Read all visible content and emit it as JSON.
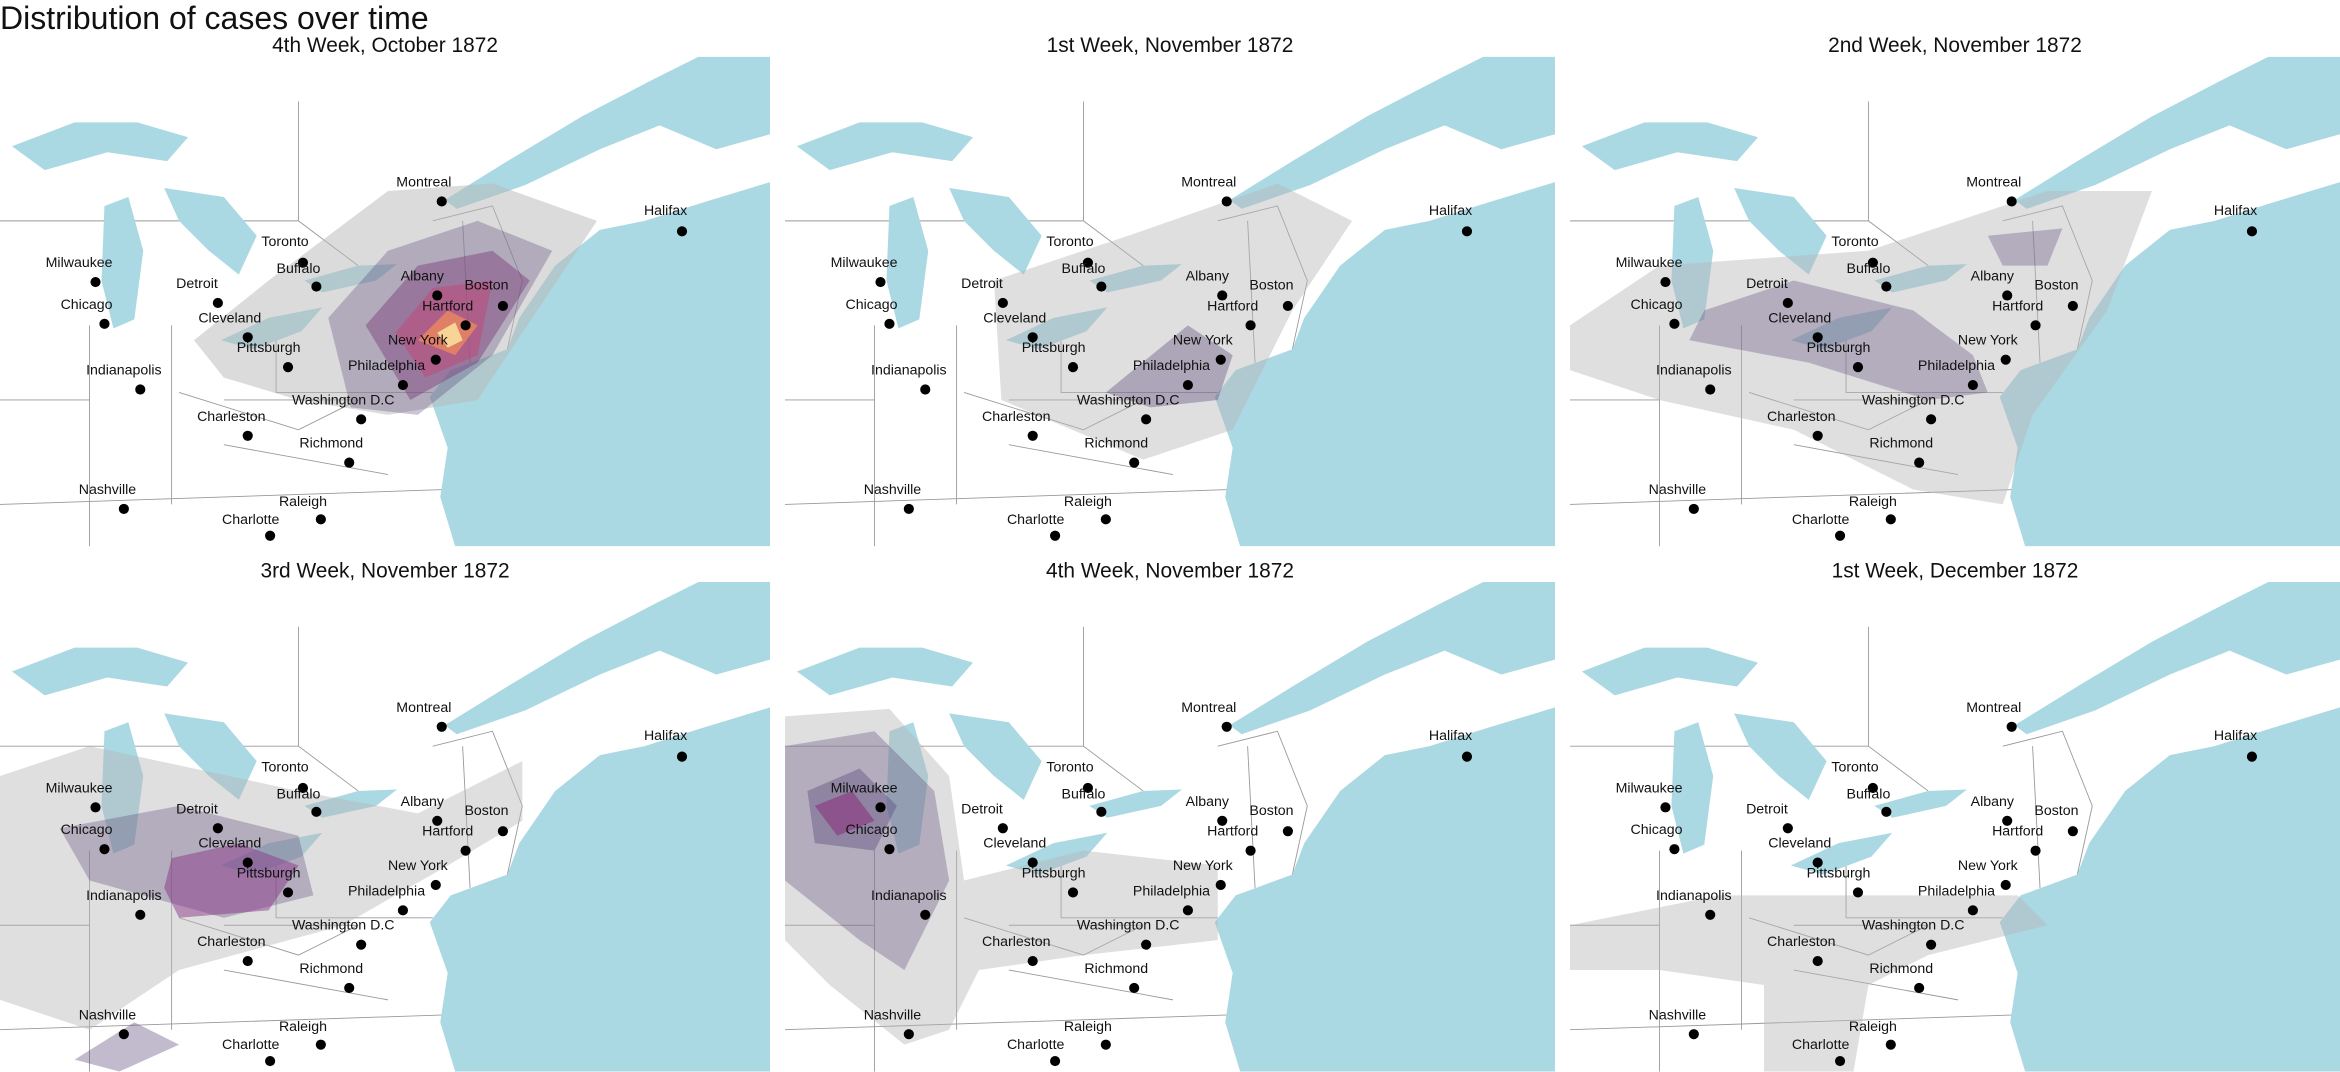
{
  "title": "Distribution of cases over time",
  "panels": [
    {
      "title": "4th Week, October 1872"
    },
    {
      "title": "1st Week, November 1872"
    },
    {
      "title": "2nd Week, November 1872"
    },
    {
      "title": "3rd Week, November 1872"
    },
    {
      "title": "4th Week, November 1872"
    },
    {
      "title": "1st Week, December 1872"
    }
  ],
  "cities": [
    "Montreal",
    "Halifax",
    "Toronto",
    "Milwaukee",
    "Buffalo",
    "Detroit",
    "Albany",
    "Boston",
    "Chicago",
    "Cleveland",
    "Hartford",
    "New York",
    "Pittsburgh",
    "Indianapolis",
    "Philadelphia",
    "Washington D.C",
    "Charleston",
    "Richmond",
    "Nashville",
    "Raleigh",
    "Charlotte"
  ]
}
